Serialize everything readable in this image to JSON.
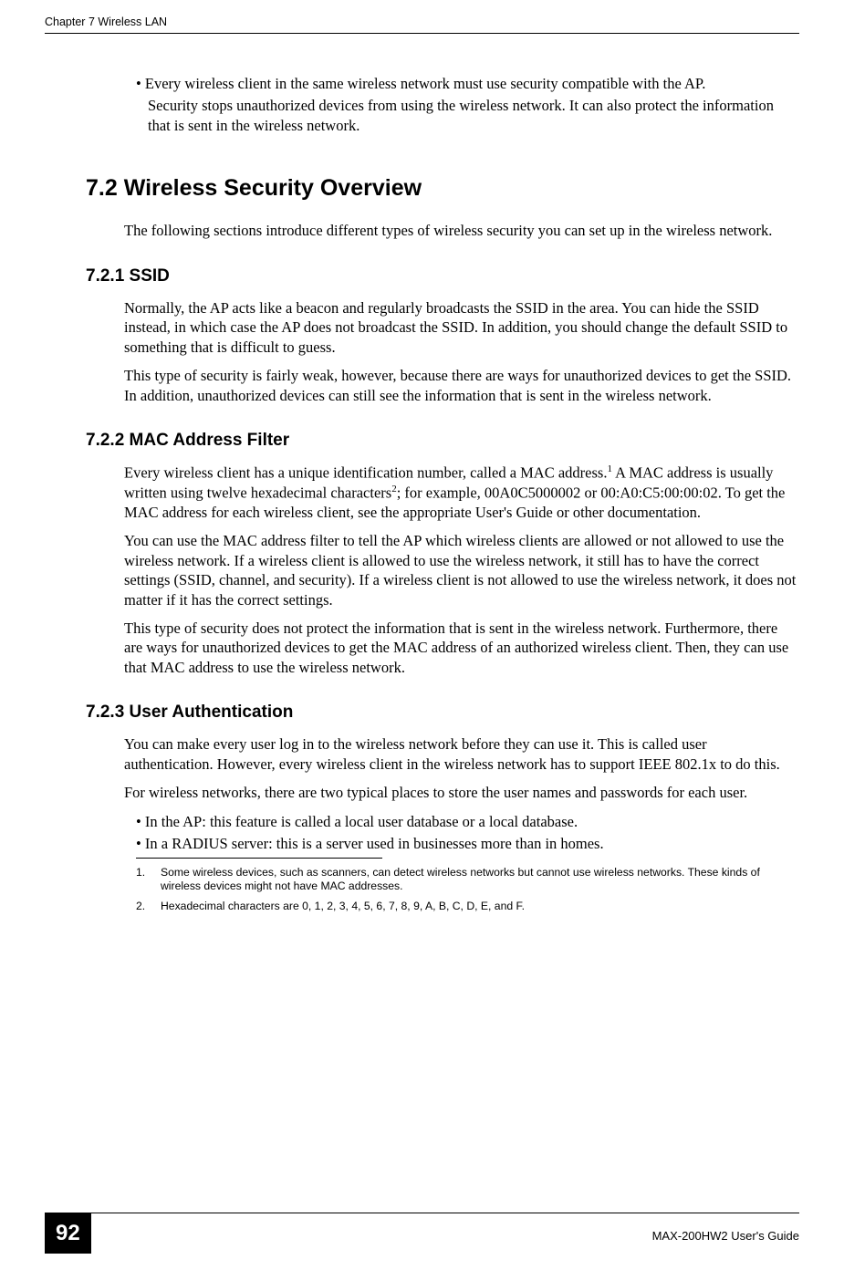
{
  "header": {
    "chapter_label": "Chapter 7 Wireless LAN"
  },
  "intro": {
    "bullet": "• Every wireless client in the same wireless network must use security compatible with the AP.",
    "continue": "Security stops unauthorized devices from using the wireless network. It can also protect the information that is sent in the wireless network."
  },
  "section_7_2": {
    "heading": "7.2  Wireless Security Overview",
    "para1": "The following sections introduce different types of wireless security you can set up in the wireless network."
  },
  "section_7_2_1": {
    "heading": "7.2.1  SSID",
    "para1": "Normally, the AP acts like a beacon and regularly broadcasts the SSID in the area. You can hide the SSID instead, in which case the AP does not broadcast the SSID. In addition, you should change the default SSID to something that is difficult to guess.",
    "para2": "This type of security is fairly weak, however, because there are ways for unauthorized devices to get the SSID. In addition, unauthorized devices can still see the information that is sent in the wireless network."
  },
  "section_7_2_2": {
    "heading": "7.2.2  MAC Address Filter",
    "para1_part1": "Every wireless client has a unique identification number, called a MAC address.",
    "para1_sup1": "1",
    "para1_part2": " A MAC address is usually written using twelve hexadecimal characters",
    "para1_sup2": "2",
    "para1_part3": "; for example, 00A0C5000002 or 00:A0:C5:00:00:02. To get the MAC address for each wireless client, see the appropriate User's Guide or other documentation.",
    "para2": "You can use the MAC address filter to tell the AP which wireless clients are allowed or not allowed to use the wireless network. If a wireless client is allowed to use the wireless network, it still has to have the correct settings (SSID, channel, and security). If a wireless client is not allowed to use the wireless network, it does not matter if it has the correct settings.",
    "para3": "This type of security does not protect the information that is sent in the wireless network. Furthermore, there are ways for unauthorized devices to get the MAC address of an authorized wireless client. Then, they can use that MAC address to use the wireless network."
  },
  "section_7_2_3": {
    "heading": "7.2.3  User Authentication",
    "para1": "You can make every user log in to the wireless network before they can use it. This is called user authentication. However, every wireless client in the wireless network has to support IEEE 802.1x to do this.",
    "para2": "For wireless networks, there are two typical places to store the user names and passwords for each user.",
    "bullet1": "• In the AP: this feature is called a local user database or a local database.",
    "bullet2": "• In a RADIUS server: this is a server used in businesses more than in homes."
  },
  "footnotes": {
    "n1": "1.",
    "t1": "Some wireless devices, such as scanners, can detect wireless networks but cannot use wireless networks. These kinds of wireless devices might not have MAC addresses.",
    "n2": "2.",
    "t2": "Hexadecimal characters are 0, 1, 2, 3, 4, 5, 6, 7, 8, 9, A, B, C, D, E, and F."
  },
  "footer": {
    "page_num": "92",
    "guide_title": "MAX-200HW2 User's Guide"
  }
}
